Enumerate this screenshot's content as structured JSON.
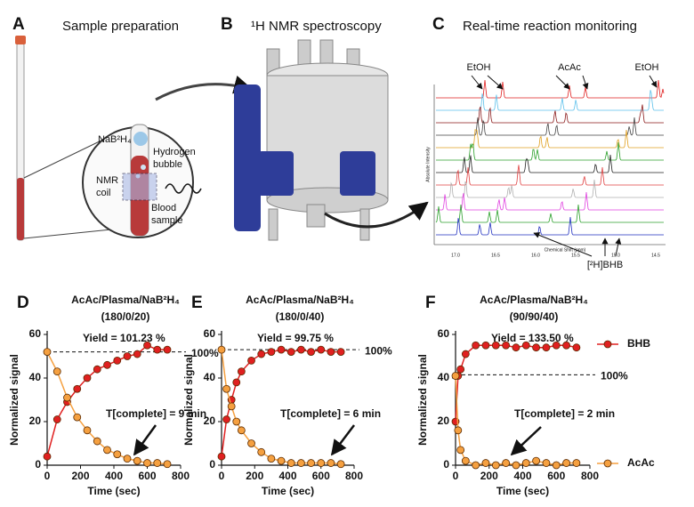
{
  "panels": {
    "A": {
      "letter": "A",
      "title": "Sample preparation",
      "labels": [
        "NaB²H₄",
        "Hydrogen",
        "bubble",
        "NMR",
        "coil",
        "Blood",
        "sample"
      ]
    },
    "B": {
      "letter": "B",
      "title": "¹H NMR spectroscopy"
    },
    "C": {
      "letter": "C",
      "title": "Real-time reaction monitoring",
      "peak_labels": [
        "EtOH",
        "AcAc",
        "EtOH",
        "[²H]BHB"
      ],
      "x_label": "Chemical Shift (ppm)",
      "y_label": "Absolute Intensity",
      "x_tick_labels": [
        "17.0",
        "16.5",
        "16.0",
        "15.5",
        "15.0",
        "14.5"
      ]
    }
  },
  "chart_data": [
    {
      "type": "line",
      "letter": "D",
      "title": "AcAc/Plasma/NaB²H₄",
      "subtitle": "(180/0/20)",
      "x_label": "Time (sec)",
      "y_label": "Normalized signal",
      "x": [
        0,
        60,
        120,
        180,
        240,
        300,
        360,
        420,
        480,
        540,
        600,
        660,
        720
      ],
      "series": [
        {
          "color": "#e02020",
          "values": [
            4,
            21,
            29,
            35,
            40,
            44,
            46,
            48,
            50,
            51,
            55,
            53,
            53
          ]
        },
        {
          "color": "#f5a040",
          "values": [
            52,
            43,
            31,
            22,
            16,
            11,
            7,
            5,
            3,
            2,
            1,
            1,
            0.5
          ]
        }
      ],
      "xlim": [
        0,
        800
      ],
      "ylim": [
        0,
        60
      ],
      "xticks": [
        0,
        200,
        400,
        600,
        800
      ],
      "yticks": [
        0,
        20,
        40,
        60
      ],
      "reference_line": {
        "value": 52,
        "label": "100%"
      },
      "yield_label": "Yield = 101.23 %",
      "completion_label": "T[complete] = 9 min",
      "legend": false
    },
    {
      "type": "line",
      "letter": "E",
      "title": "AcAc/Plasma/NaB²H₄",
      "subtitle": "(180/0/40)",
      "x_label": "Time (sec)",
      "y_label": "Normalized signal",
      "x": [
        0,
        30,
        60,
        90,
        120,
        180,
        240,
        300,
        360,
        420,
        480,
        540,
        600,
        660,
        720
      ],
      "series": [
        {
          "color": "#e02020",
          "values": [
            4,
            21,
            30,
            38,
            43,
            48,
            51,
            52,
            53,
            52,
            53,
            52,
            53,
            52,
            52
          ]
        },
        {
          "color": "#f5a040",
          "values": [
            53,
            35,
            27,
            20,
            16,
            10,
            6,
            3,
            2,
            1,
            1,
            1,
            1,
            1,
            0.5
          ]
        }
      ],
      "xlim": [
        0,
        800
      ],
      "ylim": [
        0,
        60
      ],
      "xticks": [
        0,
        200,
        400,
        600,
        800
      ],
      "yticks": [
        0,
        20,
        40,
        60
      ],
      "reference_line": {
        "value": 53,
        "label": "100%"
      },
      "yield_label": "Yield = 99.75 %",
      "completion_label": "T[complete] = 6 min",
      "legend": false
    },
    {
      "type": "line",
      "letter": "F",
      "title": "AcAc/Plasma/NaB²H₄",
      "subtitle": "(90/90/40)",
      "x_label": "Time (sec)",
      "y_label": "Normalized signal",
      "x": [
        0,
        15,
        30,
        60,
        120,
        180,
        240,
        300,
        360,
        420,
        480,
        540,
        600,
        660,
        720
      ],
      "series": [
        {
          "name": "BHB",
          "color": "#e02020",
          "values": [
            20,
            41,
            44,
            51,
            55,
            55,
            55,
            55,
            54,
            55,
            54,
            54,
            55,
            55,
            54
          ]
        },
        {
          "name": "AcAc",
          "color": "#f5a040",
          "values": [
            41,
            16,
            7,
            2,
            0,
            1,
            0,
            1,
            0,
            1,
            2,
            1,
            0,
            1,
            1
          ]
        }
      ],
      "xlim": [
        0,
        800
      ],
      "ylim": [
        0,
        60
      ],
      "xticks": [
        0,
        200,
        400,
        600,
        800
      ],
      "yticks": [
        0,
        20,
        40,
        60
      ],
      "reference_line": {
        "value": 41.5,
        "label": "100%"
      },
      "yield_label": "Yield = 133.50 %",
      "completion_label": "T[complete] = 2 min",
      "legend": true
    }
  ]
}
